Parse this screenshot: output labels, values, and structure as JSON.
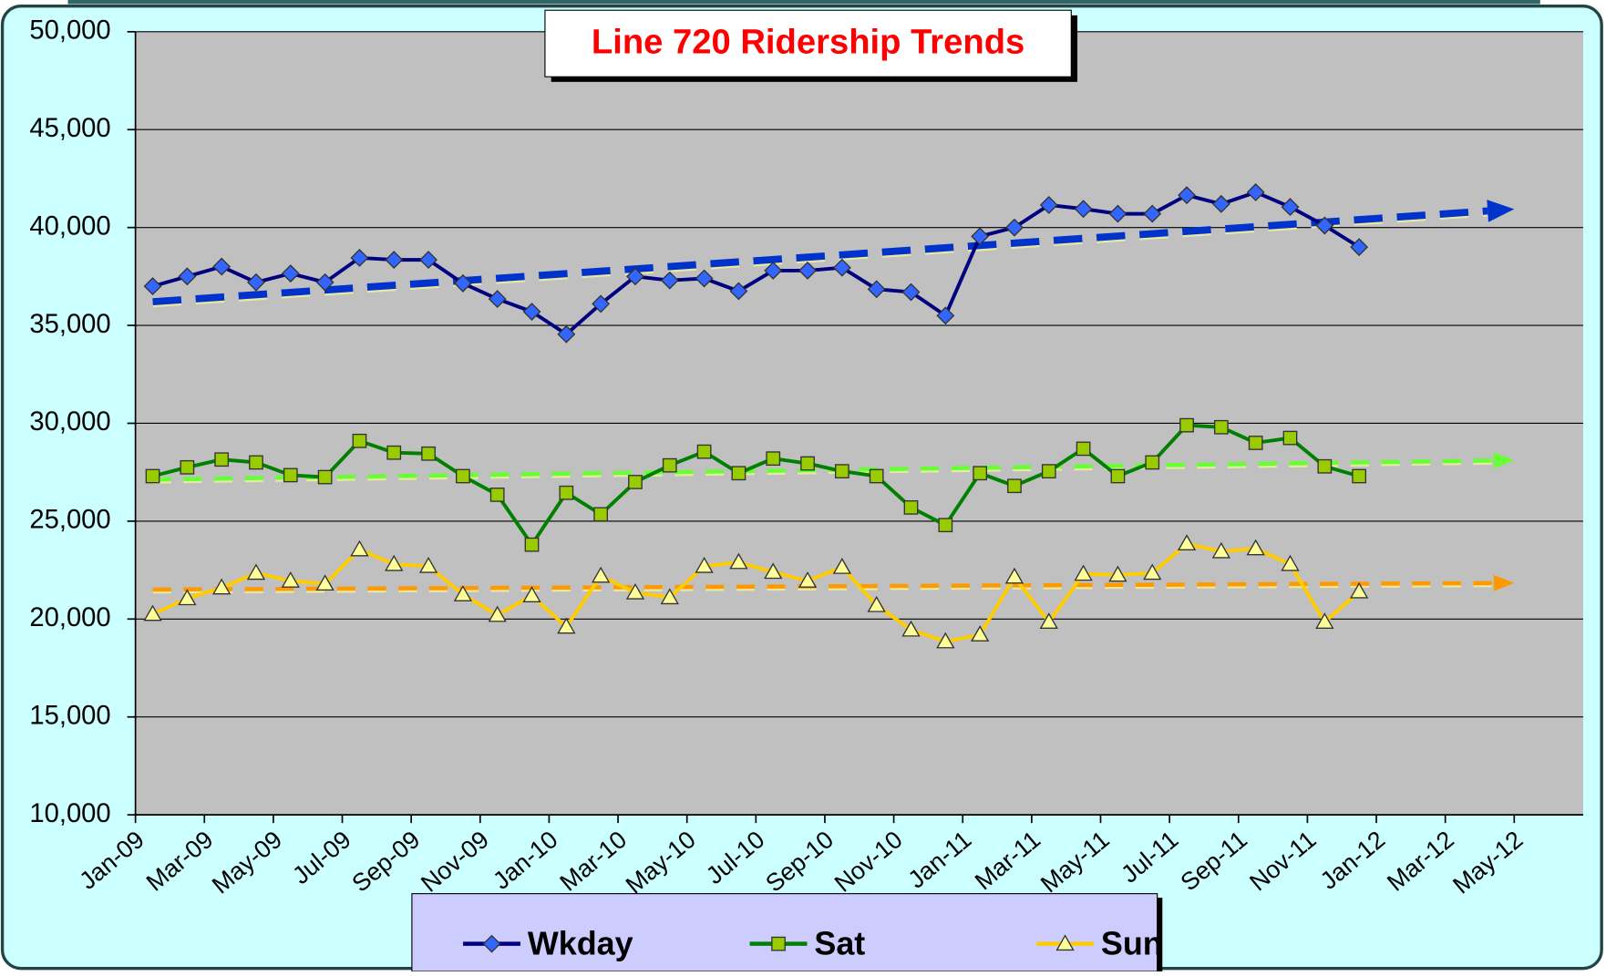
{
  "chart_data": {
    "type": "line",
    "title": "Line 720 Ridership Trends",
    "x": [
      "Jan-09",
      "Feb-09",
      "Mar-09",
      "Apr-09",
      "May-09",
      "Jun-09",
      "Jul-09",
      "Aug-09",
      "Sep-09",
      "Oct-09",
      "Nov-09",
      "Dec-09",
      "Jan-10",
      "Feb-10",
      "Mar-10",
      "Apr-10",
      "May-10",
      "Jun-10",
      "Jul-10",
      "Aug-10",
      "Sep-10",
      "Oct-10",
      "Nov-10",
      "Dec-10",
      "Jan-11",
      "Feb-11",
      "Mar-11",
      "Apr-11",
      "May-11",
      "Jun-11",
      "Jul-11",
      "Aug-11",
      "Sep-11",
      "Oct-11",
      "Nov-11",
      "Dec-11"
    ],
    "series": [
      {
        "name": "Wkday",
        "color": "#000080",
        "marker": "diamond",
        "marker_color": "#3366ff",
        "trend_color": "#0033cc",
        "values": [
          37000,
          37500,
          38000,
          37200,
          37650,
          37200,
          38450,
          38350,
          38350,
          37150,
          36350,
          35700,
          34550,
          36100,
          37500,
          37300,
          37400,
          36750,
          37800,
          37800,
          37950,
          36850,
          36700,
          35500,
          39550,
          40000,
          41150,
          40950,
          40700,
          40700,
          41650,
          41200,
          41800,
          41050,
          40100,
          39000
        ]
      },
      {
        "name": "Sat",
        "color": "#008000",
        "marker": "square",
        "marker_color": "#99cc00",
        "trend_color": "#66ff33",
        "values": [
          27300,
          27750,
          28150,
          28000,
          27350,
          27250,
          29100,
          28500,
          28450,
          27300,
          26350,
          23800,
          26450,
          25350,
          27000,
          27850,
          28550,
          27450,
          28200,
          27950,
          27550,
          27300,
          25700,
          24800,
          27450,
          26800,
          27550,
          28700,
          27300,
          28000,
          29900,
          29800,
          29000,
          29250,
          27800,
          27300
        ]
      },
      {
        "name": "Sun",
        "color": "#ffcc00",
        "marker": "triangle",
        "marker_color": "#ffff99",
        "trend_color": "#ff9900",
        "values": [
          20250,
          21050,
          21600,
          22350,
          21950,
          21800,
          23550,
          22800,
          22700,
          21250,
          20200,
          21200,
          19600,
          22200,
          21350,
          21100,
          22700,
          22900,
          22400,
          21950,
          22650,
          20700,
          19450,
          18850,
          19200,
          22150,
          19850,
          22300,
          22250,
          22350,
          23850,
          23450,
          23600,
          22800,
          19850,
          21400
        ]
      }
    ],
    "xlim": [
      "Jan-09",
      "Jul-12"
    ],
    "xticks": [
      "Jan-09",
      "Mar-09",
      "May-09",
      "Jul-09",
      "Sep-09",
      "Nov-09",
      "Jan-10",
      "Mar-10",
      "May-10",
      "Jul-10",
      "Sep-10",
      "Nov-10",
      "Jan-11",
      "Mar-11",
      "May-11",
      "Jul-11",
      "Sep-11",
      "Nov-11",
      "Jan-12",
      "Mar-12",
      "May-12"
    ],
    "ylim": [
      10000,
      50000
    ],
    "yticks": [
      {
        "value": 10000,
        "label": "10,000"
      },
      {
        "value": 15000,
        "label": "15,000"
      },
      {
        "value": 20000,
        "label": "20,000"
      },
      {
        "value": 25000,
        "label": "25,000"
      },
      {
        "value": 30000,
        "label": "30,000"
      },
      {
        "value": 35000,
        "label": "35,000"
      },
      {
        "value": 40000,
        "label": "40,000"
      },
      {
        "value": 45000,
        "label": "45,000"
      },
      {
        "value": 50000,
        "label": "50,000"
      }
    ],
    "grid": true,
    "trendlines": true,
    "legend": "bottom"
  }
}
